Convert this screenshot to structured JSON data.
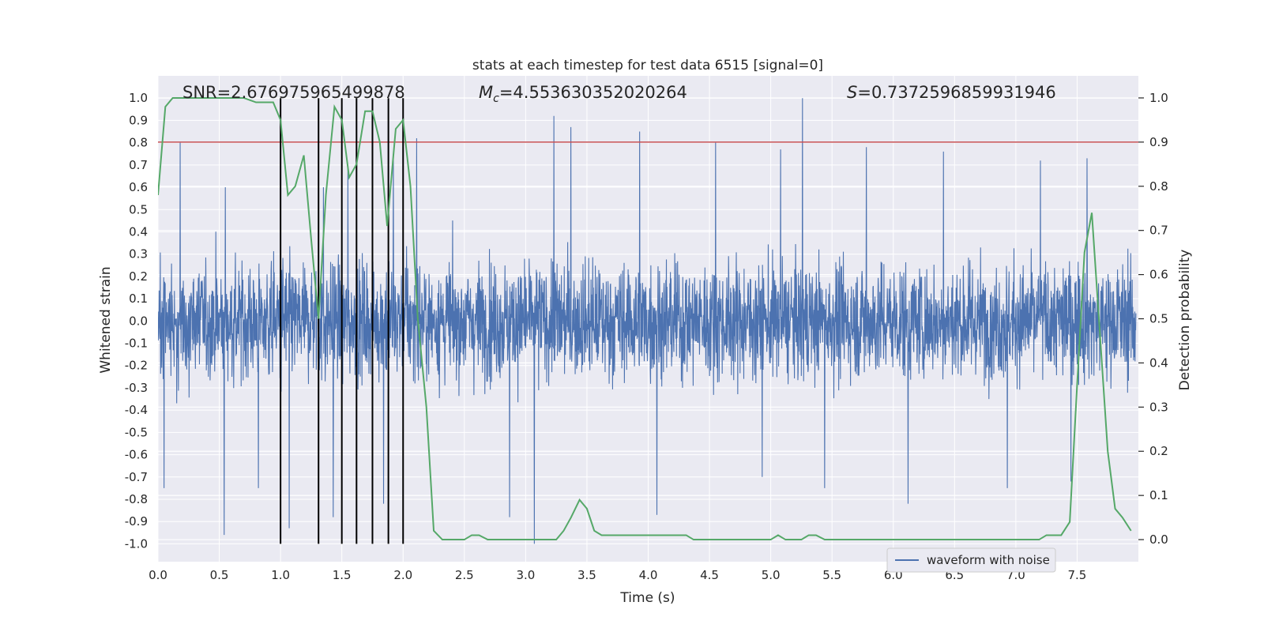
{
  "chart_data": {
    "type": "line",
    "title": "stats at each timestep for test data 6515 [signal=0]",
    "xlabel": "Time (s)",
    "ylabel_left": "Whitened strain",
    "ylabel_right": "Detection probability",
    "xlim": [
      0.0,
      8.0
    ],
    "ylim_left": [
      -1.08,
      1.1
    ],
    "ylim_right": [
      -0.05,
      1.05
    ],
    "x_ticks": [
      "0.0",
      "0.5",
      "1.0",
      "1.5",
      "2.0",
      "2.5",
      "3.0",
      "3.5",
      "4.0",
      "4.5",
      "5.0",
      "5.5",
      "6.0",
      "6.5",
      "7.0",
      "7.5"
    ],
    "y_left_ticks": [
      "1.0",
      "0.9",
      "0.8",
      "0.7",
      "0.6",
      "0.5",
      "0.4",
      "0.3",
      "0.2",
      "0.1",
      "0.0",
      "-0.1",
      "-0.2",
      "-0.3",
      "-0.4",
      "-0.5",
      "-0.6",
      "-0.7",
      "-0.8",
      "-0.9",
      "-1.0"
    ],
    "y_right_ticks": [
      "1.0",
      "0.9",
      "0.8",
      "0.7",
      "0.6",
      "0.5",
      "0.4",
      "0.3",
      "0.2",
      "0.1",
      "0.0"
    ],
    "grid": true,
    "legend": {
      "placement": "bottom-right",
      "entries": [
        "waveform with noise"
      ]
    },
    "annotations": {
      "snr": "SNR=2.676975965499878",
      "mc_symbol": "M",
      "mc_sub": "c",
      "mc_value": "=4.553630352020264",
      "s_symbol": "S",
      "s_value": "=0.7372596859931946"
    },
    "threshold": {
      "axis": "right",
      "value": 0.9,
      "color": "#c44e52"
    },
    "vlines_x": [
      1.0,
      1.31,
      1.5,
      1.62,
      1.75,
      1.88,
      2.0
    ],
    "colors": {
      "noise": "#4c72b0",
      "probability": "#55a868",
      "threshold": "#c44e52",
      "vlines": "#000000",
      "axes_bg": "#eaeaf2",
      "grid": "#ffffff"
    },
    "series": [
      {
        "name": "waveform with noise",
        "axis": "left",
        "type": "noise",
        "typical_envelope": [
          -0.45,
          0.45
        ],
        "peaks": [
          {
            "x": 0.05,
            "y": 0.5
          },
          {
            "x": 0.18,
            "y": 0.8
          },
          {
            "x": 0.55,
            "y": 0.6
          },
          {
            "x": 0.82,
            "y": 0.7
          },
          {
            "x": 1.35,
            "y": 0.6
          },
          {
            "x": 1.55,
            "y": 0.7
          },
          {
            "x": 1.92,
            "y": 0.75
          },
          {
            "x": 2.11,
            "y": 0.82
          },
          {
            "x": 3.23,
            "y": 0.92
          },
          {
            "x": 3.37,
            "y": 0.87
          },
          {
            "x": 3.93,
            "y": 0.85
          },
          {
            "x": 4.55,
            "y": 0.8
          },
          {
            "x": 4.93,
            "y": 0.8
          },
          {
            "x": 5.26,
            "y": 1.0
          },
          {
            "x": 5.08,
            "y": 0.77
          },
          {
            "x": 5.78,
            "y": 0.78
          },
          {
            "x": 6.41,
            "y": 0.76
          },
          {
            "x": 7.2,
            "y": 0.72
          },
          {
            "x": 7.58,
            "y": 0.73
          }
        ],
        "troughs": [
          {
            "x": 0.05,
            "y": -0.75
          },
          {
            "x": 0.54,
            "y": -0.96
          },
          {
            "x": 0.82,
            "y": -0.75
          },
          {
            "x": 1.07,
            "y": -0.93
          },
          {
            "x": 1.43,
            "y": -0.88
          },
          {
            "x": 1.84,
            "y": -0.82
          },
          {
            "x": 2.87,
            "y": -0.88
          },
          {
            "x": 3.07,
            "y": -1.0
          },
          {
            "x": 4.07,
            "y": -0.87
          },
          {
            "x": 4.93,
            "y": -0.7
          },
          {
            "x": 5.44,
            "y": -0.75
          },
          {
            "x": 6.12,
            "y": -0.82
          },
          {
            "x": 6.93,
            "y": -0.75
          },
          {
            "x": 7.45,
            "y": -0.72
          }
        ]
      },
      {
        "name": "",
        "axis": "right",
        "type": "line",
        "x": [
          0.0,
          0.06,
          0.12,
          0.2,
          0.3,
          0.4,
          0.5,
          0.6,
          0.7,
          0.8,
          0.88,
          0.94,
          1.0,
          1.06,
          1.12,
          1.19,
          1.25,
          1.31,
          1.37,
          1.44,
          1.5,
          1.56,
          1.62,
          1.69,
          1.75,
          1.81,
          1.87,
          1.94,
          2.0,
          2.06,
          2.12,
          2.19,
          2.25,
          2.32,
          2.38,
          2.44,
          2.5,
          2.56,
          2.62,
          2.69,
          2.75,
          2.81,
          2.87,
          3.0,
          3.12,
          3.19,
          3.25,
          3.31,
          3.37,
          3.44,
          3.5,
          3.56,
          3.62,
          3.69,
          3.75,
          3.81,
          3.87,
          3.94,
          4.0,
          4.06,
          4.12,
          4.19,
          4.25,
          4.31,
          4.37,
          4.44,
          4.5,
          4.56,
          4.62,
          4.69,
          4.75,
          4.81,
          4.87,
          4.94,
          5.0,
          5.06,
          5.12,
          5.19,
          5.25,
          5.31,
          5.37,
          5.44,
          5.5,
          5.56,
          5.62,
          5.69,
          5.75,
          5.81,
          5.87,
          5.94,
          6.0,
          6.25,
          6.5,
          6.75,
          7.0,
          7.12,
          7.19,
          7.25,
          7.31,
          7.37,
          7.44,
          7.5,
          7.56,
          7.62,
          7.69,
          7.75,
          7.81,
          7.87,
          7.94
        ],
        "y": [
          0.78,
          0.98,
          1.0,
          1.0,
          1.0,
          1.0,
          1.0,
          1.0,
          1.0,
          0.99,
          0.99,
          0.99,
          0.95,
          0.78,
          0.8,
          0.87,
          0.68,
          0.5,
          0.78,
          0.98,
          0.95,
          0.82,
          0.85,
          0.97,
          0.97,
          0.9,
          0.71,
          0.93,
          0.95,
          0.8,
          0.5,
          0.3,
          0.02,
          0.0,
          0.0,
          0.0,
          0.0,
          0.01,
          0.01,
          0.0,
          0.0,
          0.0,
          0.0,
          0.0,
          0.0,
          0.0,
          0.0,
          0.02,
          0.05,
          0.09,
          0.07,
          0.02,
          0.01,
          0.01,
          0.01,
          0.01,
          0.01,
          0.01,
          0.01,
          0.01,
          0.01,
          0.01,
          0.01,
          0.01,
          0.0,
          0.0,
          0.0,
          0.0,
          0.0,
          0.0,
          0.0,
          0.0,
          0.0,
          0.0,
          0.0,
          0.01,
          0.0,
          0.0,
          0.0,
          0.01,
          0.01,
          0.0,
          0.0,
          0.0,
          0.0,
          0.0,
          0.0,
          0.0,
          0.0,
          0.0,
          0.0,
          0.0,
          0.0,
          0.0,
          0.0,
          0.0,
          0.0,
          0.01,
          0.01,
          0.01,
          0.04,
          0.35,
          0.65,
          0.74,
          0.45,
          0.2,
          0.07,
          0.05,
          0.02
        ]
      }
    ]
  }
}
